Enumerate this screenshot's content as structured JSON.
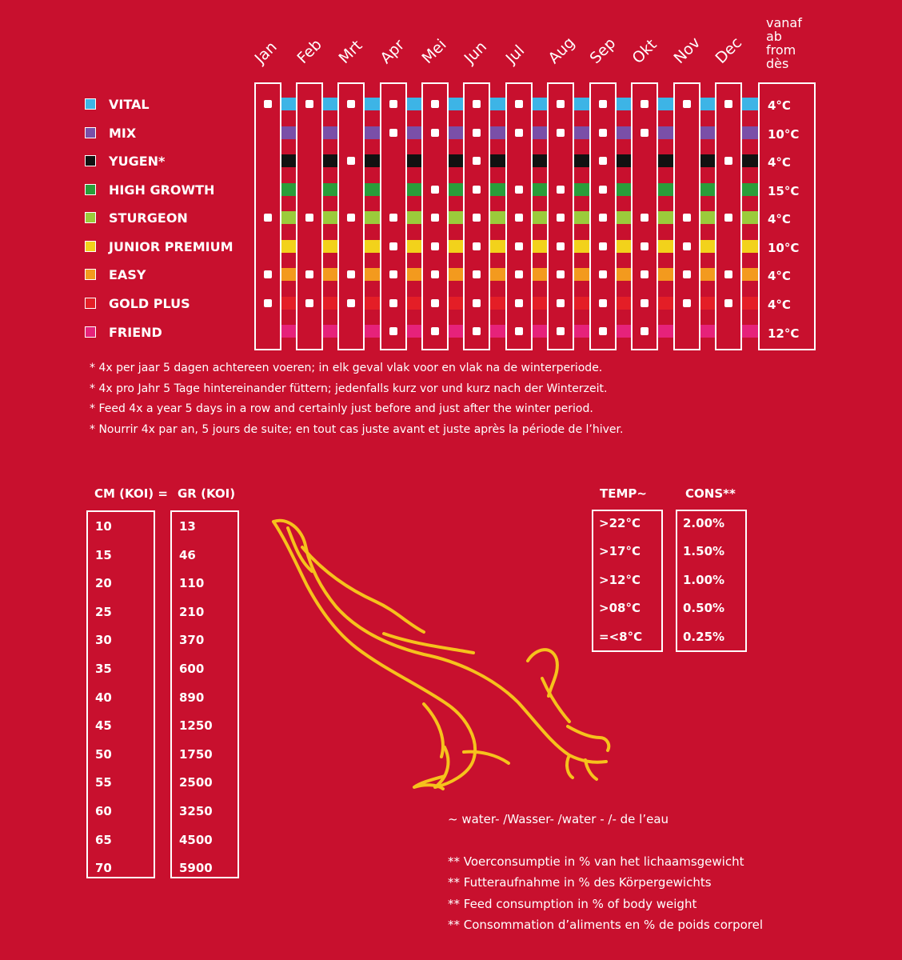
{
  "months": [
    "Jan",
    "Feb",
    "Mrt",
    "Apr",
    "Mei",
    "Jun",
    "Jul",
    "Aug",
    "Sep",
    "Okt",
    "Nov",
    "Dec"
  ],
  "temp_header": [
    "vanaf",
    "ab",
    "from",
    "dès"
  ],
  "products": [
    {
      "name": "VITAL",
      "color": "#3db4e6",
      "temp": "4°C",
      "months": [
        1,
        1,
        1,
        1,
        1,
        1,
        1,
        1,
        1,
        1,
        1,
        1
      ]
    },
    {
      "name": "MIX",
      "color": "#7a4fa8",
      "temp": "10°C",
      "months": [
        0,
        0,
        0,
        1,
        1,
        1,
        1,
        1,
        1,
        1,
        0,
        0
      ]
    },
    {
      "name": "YUGEN*",
      "color": "#111111",
      "temp": "4°C",
      "months": [
        0,
        0,
        1,
        0,
        0,
        1,
        0,
        0,
        1,
        0,
        0,
        1
      ]
    },
    {
      "name": "HIGH GROWTH",
      "color": "#2a9d3a",
      "temp": "15°C",
      "months": [
        0,
        0,
        0,
        0,
        1,
        1,
        1,
        1,
        1,
        0,
        0,
        0
      ]
    },
    {
      "name": "STURGEON",
      "color": "#9bcb3b",
      "temp": "4°C",
      "months": [
        1,
        1,
        1,
        1,
        1,
        1,
        1,
        1,
        1,
        1,
        1,
        1
      ]
    },
    {
      "name": "JUNIOR PREMIUM",
      "color": "#f2d21b",
      "temp": "10°C",
      "months": [
        0,
        0,
        0,
        1,
        1,
        1,
        1,
        1,
        1,
        1,
        1,
        0
      ]
    },
    {
      "name": "EASY",
      "color": "#f39a1e",
      "temp": "4°C",
      "months": [
        1,
        1,
        1,
        1,
        1,
        1,
        1,
        1,
        1,
        1,
        1,
        1
      ]
    },
    {
      "name": "GOLD PLUS",
      "color": "#e41e26",
      "temp": "4°C",
      "months": [
        1,
        1,
        1,
        1,
        1,
        1,
        1,
        1,
        1,
        1,
        1,
        1
      ]
    },
    {
      "name": "FRIEND",
      "color": "#e6227a",
      "temp": "12°C",
      "months": [
        0,
        0,
        0,
        1,
        1,
        1,
        1,
        1,
        1,
        1,
        0,
        0
      ]
    }
  ],
  "notes": [
    "*   4x per jaar 5 dagen achtereen voeren; in elk geval vlak voor en vlak na de winterperiode.",
    "*   4x pro Jahr 5 Tage hintereinander füttern; jedenfalls kurz vor und kurz nach der Winterzeit.",
    "*   Feed 4x a year 5 days in a row and certainly just before and just after the winter period.",
    "*   Nourrir 4x par an, 5 jours de suite; en tout cas juste avant et juste après la période de l’hiver."
  ],
  "size_table": {
    "cm_header": "CM (KOI) =",
    "gr_header": "GR (KOI)",
    "cm": [
      "10",
      "15",
      "20",
      "25",
      "30",
      "35",
      "40",
      "45",
      "50",
      "55",
      "60",
      "65",
      "70"
    ],
    "gr": [
      "13",
      "46",
      "110",
      "210",
      "370",
      "600",
      "890",
      "1250",
      "1750",
      "2500",
      "3250",
      "4500",
      "5900"
    ]
  },
  "cons_table": {
    "temp_header": "TEMP~",
    "cons_header": "CONS**",
    "temp": [
      ">22°C",
      ">17°C",
      ">12°C",
      ">08°C",
      "=<8°C"
    ],
    "cons": [
      "2.00%",
      "1.50%",
      "1.00%",
      "0.50%",
      "0.25%"
    ]
  },
  "water_note": "~   water- /Wasser- /water - /- de l’eau",
  "cons_notes": [
    "** Voerconsumptie in % van het lichaamsgewicht",
    "** Futteraufnahme in % des Körpergewichts",
    "** Feed consumption in % of body weight",
    "** Consommation d’aliments en % de poids corporel"
  ],
  "colors": {
    "background": "#c8102e",
    "fish_outline": "#f6c21c"
  }
}
